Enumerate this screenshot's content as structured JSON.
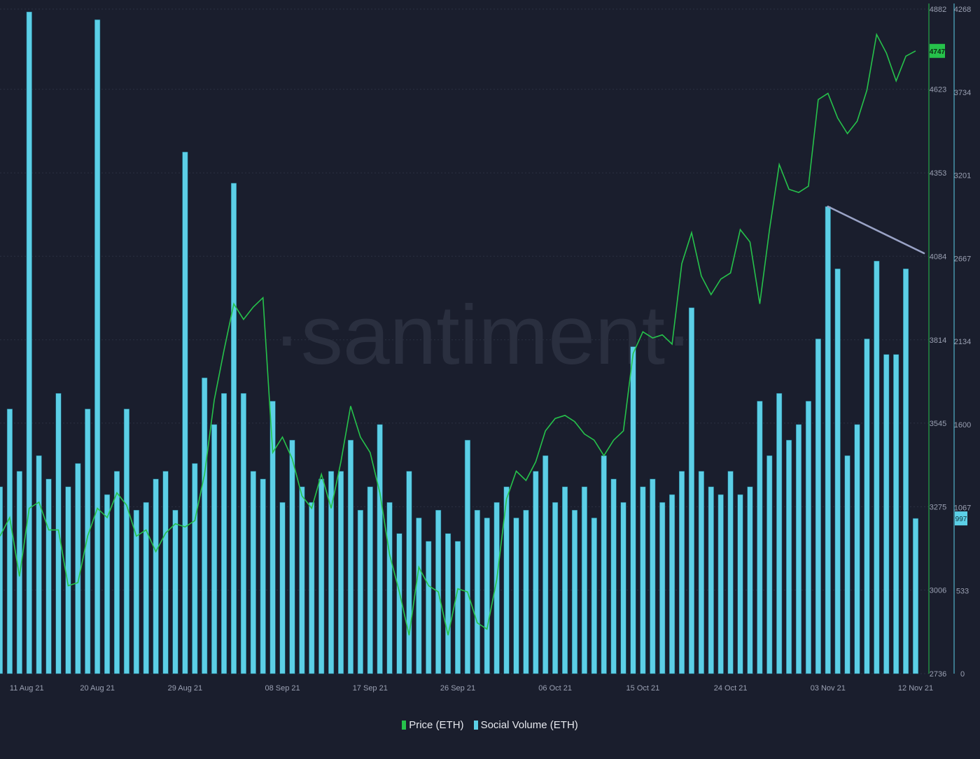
{
  "colors": {
    "background": "#1a1e2d",
    "price": "#26c24b",
    "volume": "#5ccfe6",
    "volume_edge": "#1a6e86",
    "trendline": "#9aa3c6",
    "grid": "#2a3042",
    "axis_text": "#9aa0b2",
    "watermark": "#2a2f3f"
  },
  "watermark": "·santiment·",
  "chart_data": {
    "type": "bar+line",
    "x_range": [
      "2021-08-10",
      "2021-11-12"
    ],
    "x_tick_labels": [
      {
        "date": "2021-08-11",
        "label": "11 Aug 21"
      },
      {
        "date": "2021-08-20",
        "label": "20 Aug 21"
      },
      {
        "date": "2021-08-29",
        "label": "29 Aug 21"
      },
      {
        "date": "2021-09-08",
        "label": "08 Sep 21"
      },
      {
        "date": "2021-09-17",
        "label": "17 Sep 21"
      },
      {
        "date": "2021-09-26",
        "label": "26 Sep 21"
      },
      {
        "date": "2021-10-06",
        "label": "06 Oct 21"
      },
      {
        "date": "2021-10-15",
        "label": "15 Oct 21"
      },
      {
        "date": "2021-10-24",
        "label": "24 Oct 21"
      },
      {
        "date": "2021-11-03",
        "label": "03 Nov 21"
      },
      {
        "date": "2021-11-12",
        "label": "12 Nov 21"
      }
    ],
    "price_axis": {
      "range": [
        2736,
        4882
      ],
      "ticks": [
        "4882",
        "4623",
        "4353",
        "4084",
        "3814",
        "3545",
        "3275",
        "3006",
        "2736"
      ],
      "current_label": "4747",
      "current_value": 4747
    },
    "volume_axis": {
      "range": [
        0,
        4268
      ],
      "ticks": [
        "4268",
        "3734",
        "3201",
        "2667",
        "2134",
        "1600",
        "1067",
        "533",
        "0"
      ],
      "current_label": "997",
      "current_value": 997
    },
    "series": [
      {
        "name": "Price (ETH)",
        "kind": "line",
        "axis": "price",
        "points": [
          [
            "2021-08-10",
            3180
          ],
          [
            "2021-08-11",
            3240
          ],
          [
            "2021-08-12",
            3050
          ],
          [
            "2021-08-13",
            3270
          ],
          [
            "2021-08-14",
            3290
          ],
          [
            "2021-08-15",
            3200
          ],
          [
            "2021-08-16",
            3200
          ],
          [
            "2021-08-17",
            3020
          ],
          [
            "2021-08-18",
            3030
          ],
          [
            "2021-08-19",
            3180
          ],
          [
            "2021-08-20",
            3270
          ],
          [
            "2021-08-21",
            3240
          ],
          [
            "2021-08-22",
            3320
          ],
          [
            "2021-08-23",
            3280
          ],
          [
            "2021-08-24",
            3180
          ],
          [
            "2021-08-25",
            3200
          ],
          [
            "2021-08-26",
            3130
          ],
          [
            "2021-08-27",
            3190
          ],
          [
            "2021-08-28",
            3220
          ],
          [
            "2021-08-29",
            3210
          ],
          [
            "2021-08-30",
            3230
          ],
          [
            "2021-08-31",
            3380
          ],
          [
            "2021-09-01",
            3620
          ],
          [
            "2021-09-02",
            3780
          ],
          [
            "2021-09-03",
            3930
          ],
          [
            "2021-09-04",
            3880
          ],
          [
            "2021-09-05",
            3920
          ],
          [
            "2021-09-06",
            3950
          ],
          [
            "2021-09-07",
            3450
          ],
          [
            "2021-09-08",
            3500
          ],
          [
            "2021-09-09",
            3430
          ],
          [
            "2021-09-10",
            3310
          ],
          [
            "2021-09-11",
            3270
          ],
          [
            "2021-09-12",
            3380
          ],
          [
            "2021-09-13",
            3270
          ],
          [
            "2021-09-14",
            3420
          ],
          [
            "2021-09-15",
            3600
          ],
          [
            "2021-09-16",
            3500
          ],
          [
            "2021-09-17",
            3450
          ],
          [
            "2021-09-18",
            3320
          ],
          [
            "2021-09-19",
            3120
          ],
          [
            "2021-09-20",
            3000
          ],
          [
            "2021-09-21",
            2860
          ],
          [
            "2021-09-22",
            3080
          ],
          [
            "2021-09-23",
            3020
          ],
          [
            "2021-09-24",
            3000
          ],
          [
            "2021-09-25",
            2860
          ],
          [
            "2021-09-26",
            3010
          ],
          [
            "2021-09-27",
            3000
          ],
          [
            "2021-09-28",
            2900
          ],
          [
            "2021-09-29",
            2880
          ],
          [
            "2021-09-30",
            3040
          ],
          [
            "2021-10-01",
            3300
          ],
          [
            "2021-10-02",
            3390
          ],
          [
            "2021-10-03",
            3360
          ],
          [
            "2021-10-04",
            3420
          ],
          [
            "2021-10-05",
            3520
          ],
          [
            "2021-10-06",
            3560
          ],
          [
            "2021-10-07",
            3570
          ],
          [
            "2021-10-08",
            3550
          ],
          [
            "2021-10-09",
            3510
          ],
          [
            "2021-10-10",
            3490
          ],
          [
            "2021-10-11",
            3440
          ],
          [
            "2021-10-12",
            3490
          ],
          [
            "2021-10-13",
            3520
          ],
          [
            "2021-10-14",
            3770
          ],
          [
            "2021-10-15",
            3840
          ],
          [
            "2021-10-16",
            3820
          ],
          [
            "2021-10-17",
            3830
          ],
          [
            "2021-10-18",
            3800
          ],
          [
            "2021-10-19",
            4060
          ],
          [
            "2021-10-20",
            4160
          ],
          [
            "2021-10-21",
            4020
          ],
          [
            "2021-10-22",
            3960
          ],
          [
            "2021-10-23",
            4010
          ],
          [
            "2021-10-24",
            4030
          ],
          [
            "2021-10-25",
            4170
          ],
          [
            "2021-10-26",
            4130
          ],
          [
            "2021-10-27",
            3930
          ],
          [
            "2021-10-28",
            4170
          ],
          [
            "2021-10-29",
            4380
          ],
          [
            "2021-10-30",
            4300
          ],
          [
            "2021-10-31",
            4290
          ],
          [
            "2021-11-01",
            4310
          ],
          [
            "2021-11-02",
            4590
          ],
          [
            "2021-11-03",
            4610
          ],
          [
            "2021-11-04",
            4530
          ],
          [
            "2021-11-05",
            4480
          ],
          [
            "2021-11-06",
            4520
          ],
          [
            "2021-11-07",
            4620
          ],
          [
            "2021-11-08",
            4800
          ],
          [
            "2021-11-09",
            4740
          ],
          [
            "2021-11-10",
            4650
          ],
          [
            "2021-11-11",
            4730
          ],
          [
            "2021-11-12",
            4747
          ]
        ]
      },
      {
        "name": "Social Volume (ETH)",
        "kind": "bar",
        "axis": "volume",
        "points": [
          [
            "2021-08-10",
            1200
          ],
          [
            "2021-08-11",
            1700
          ],
          [
            "2021-08-12",
            1300
          ],
          [
            "2021-08-13",
            4250
          ],
          [
            "2021-08-14",
            1400
          ],
          [
            "2021-08-15",
            1250
          ],
          [
            "2021-08-16",
            1800
          ],
          [
            "2021-08-17",
            1200
          ],
          [
            "2021-08-18",
            1350
          ],
          [
            "2021-08-19",
            1700
          ],
          [
            "2021-08-20",
            4200
          ],
          [
            "2021-08-21",
            1150
          ],
          [
            "2021-08-22",
            1300
          ],
          [
            "2021-08-23",
            1700
          ],
          [
            "2021-08-24",
            1050
          ],
          [
            "2021-08-25",
            1100
          ],
          [
            "2021-08-26",
            1250
          ],
          [
            "2021-08-27",
            1300
          ],
          [
            "2021-08-28",
            1050
          ],
          [
            "2021-08-29",
            3350
          ],
          [
            "2021-08-30",
            1350
          ],
          [
            "2021-08-31",
            1900
          ],
          [
            "2021-09-01",
            1600
          ],
          [
            "2021-09-02",
            1800
          ],
          [
            "2021-09-03",
            3150
          ],
          [
            "2021-09-04",
            1800
          ],
          [
            "2021-09-05",
            1300
          ],
          [
            "2021-09-06",
            1250
          ],
          [
            "2021-09-07",
            1750
          ],
          [
            "2021-09-08",
            1100
          ],
          [
            "2021-09-09",
            1500
          ],
          [
            "2021-09-10",
            1200
          ],
          [
            "2021-09-11",
            1100
          ],
          [
            "2021-09-12",
            1250
          ],
          [
            "2021-09-13",
            1300
          ],
          [
            "2021-09-14",
            1300
          ],
          [
            "2021-09-15",
            1500
          ],
          [
            "2021-09-16",
            1050
          ],
          [
            "2021-09-17",
            1200
          ],
          [
            "2021-09-18",
            1600
          ],
          [
            "2021-09-19",
            1100
          ],
          [
            "2021-09-20",
            900
          ],
          [
            "2021-09-21",
            1300
          ],
          [
            "2021-09-22",
            1000
          ],
          [
            "2021-09-23",
            850
          ],
          [
            "2021-09-24",
            1050
          ],
          [
            "2021-09-25",
            900
          ],
          [
            "2021-09-26",
            850
          ],
          [
            "2021-09-27",
            1500
          ],
          [
            "2021-09-28",
            1050
          ],
          [
            "2021-09-29",
            1000
          ],
          [
            "2021-09-30",
            1100
          ],
          [
            "2021-10-01",
            1200
          ],
          [
            "2021-10-02",
            1000
          ],
          [
            "2021-10-03",
            1050
          ],
          [
            "2021-10-04",
            1300
          ],
          [
            "2021-10-05",
            1400
          ],
          [
            "2021-10-06",
            1100
          ],
          [
            "2021-10-07",
            1200
          ],
          [
            "2021-10-08",
            1050
          ],
          [
            "2021-10-09",
            1200
          ],
          [
            "2021-10-10",
            1000
          ],
          [
            "2021-10-11",
            1400
          ],
          [
            "2021-10-12",
            1250
          ],
          [
            "2021-10-13",
            1100
          ],
          [
            "2021-10-14",
            2100
          ],
          [
            "2021-10-15",
            1200
          ],
          [
            "2021-10-16",
            1250
          ],
          [
            "2021-10-17",
            1100
          ],
          [
            "2021-10-18",
            1150
          ],
          [
            "2021-10-19",
            1300
          ],
          [
            "2021-10-20",
            2350
          ],
          [
            "2021-10-21",
            1300
          ],
          [
            "2021-10-22",
            1200
          ],
          [
            "2021-10-23",
            1150
          ],
          [
            "2021-10-24",
            1300
          ],
          [
            "2021-10-25",
            1150
          ],
          [
            "2021-10-26",
            1200
          ],
          [
            "2021-10-27",
            1750
          ],
          [
            "2021-10-28",
            1400
          ],
          [
            "2021-10-29",
            1800
          ],
          [
            "2021-10-30",
            1500
          ],
          [
            "2021-10-31",
            1600
          ],
          [
            "2021-11-01",
            1750
          ],
          [
            "2021-11-02",
            2150
          ],
          [
            "2021-11-03",
            3000
          ],
          [
            "2021-11-04",
            2600
          ],
          [
            "2021-11-05",
            1400
          ],
          [
            "2021-11-06",
            1600
          ],
          [
            "2021-11-07",
            2150
          ],
          [
            "2021-11-08",
            2650
          ],
          [
            "2021-11-09",
            2050
          ],
          [
            "2021-11-10",
            2050
          ],
          [
            "2021-11-11",
            2600
          ],
          [
            "2021-11-12",
            997
          ]
        ]
      }
    ],
    "trendline": {
      "axis": "volume",
      "from": [
        "2021-11-03",
        3000
      ],
      "to": [
        "2021-11-12",
        2700
      ]
    },
    "legend": {
      "position": "bottom-center",
      "entries": [
        "Price (ETH)",
        "Social Volume (ETH)"
      ]
    },
    "grid": true
  }
}
